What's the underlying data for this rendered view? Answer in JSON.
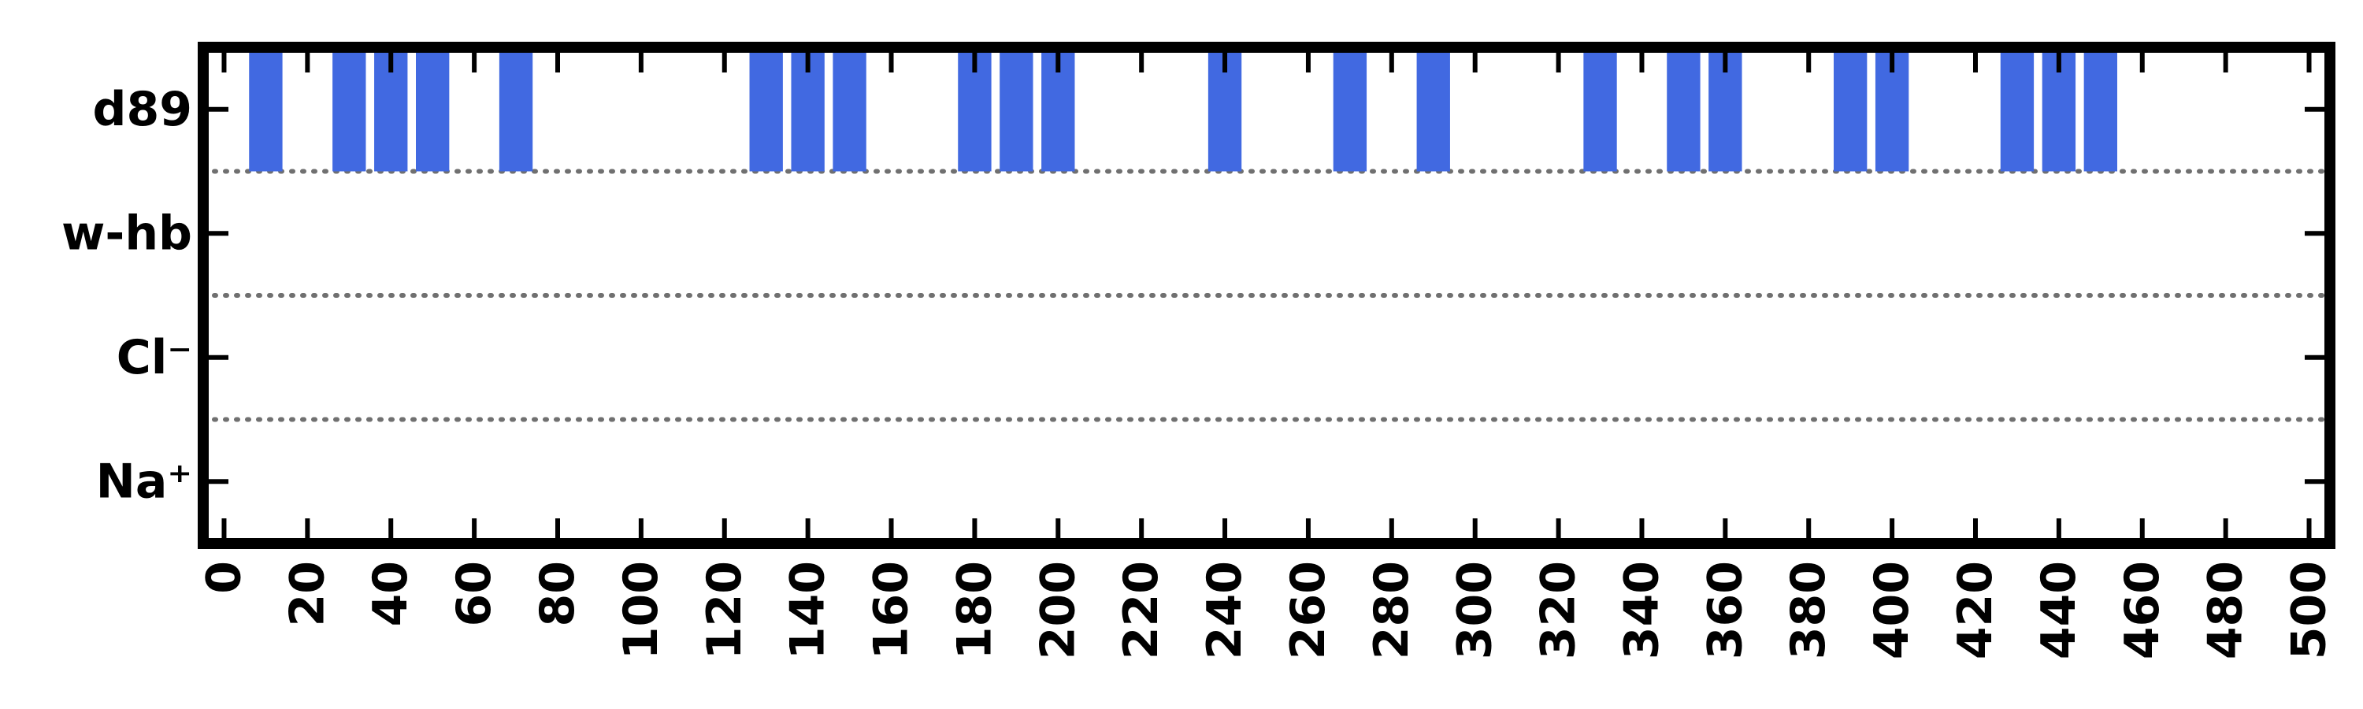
{
  "chart_data": {
    "type": "event-raster",
    "title": "",
    "xlabel": "",
    "ylabel": "",
    "xlim": [
      -5,
      505
    ],
    "x_ticks": [
      0,
      20,
      40,
      60,
      80,
      100,
      120,
      140,
      160,
      180,
      200,
      220,
      240,
      260,
      280,
      300,
      320,
      340,
      360,
      380,
      400,
      420,
      440,
      460,
      480,
      500
    ],
    "x_tick_labels": [
      "0",
      "20",
      "40",
      "60",
      "80",
      "100",
      "120",
      "140",
      "160",
      "180",
      "200",
      "220",
      "240",
      "260",
      "280",
      "300",
      "320",
      "340",
      "360",
      "380",
      "400",
      "420",
      "440",
      "460",
      "480",
      "500"
    ],
    "rows": [
      {
        "label": "d89",
        "color": "#4169e1",
        "events": [
          10,
          30,
          40,
          50,
          70,
          130,
          140,
          150,
          180,
          190,
          200,
          240,
          270,
          290,
          330,
          350,
          360,
          390,
          400,
          430,
          440,
          450
        ]
      },
      {
        "label": "w-hb",
        "color": "#4169e1",
        "events": []
      },
      {
        "label": "Cl⁻",
        "color": "#4169e1",
        "events": []
      },
      {
        "label": "Na⁺",
        "color": "#4169e1",
        "events": []
      }
    ],
    "event_width": 8,
    "row_separator": "dotted",
    "colors": {
      "bar": "#4169e1",
      "separator": "#707070",
      "frame": "#000000"
    },
    "grid": false,
    "legend": "none"
  }
}
